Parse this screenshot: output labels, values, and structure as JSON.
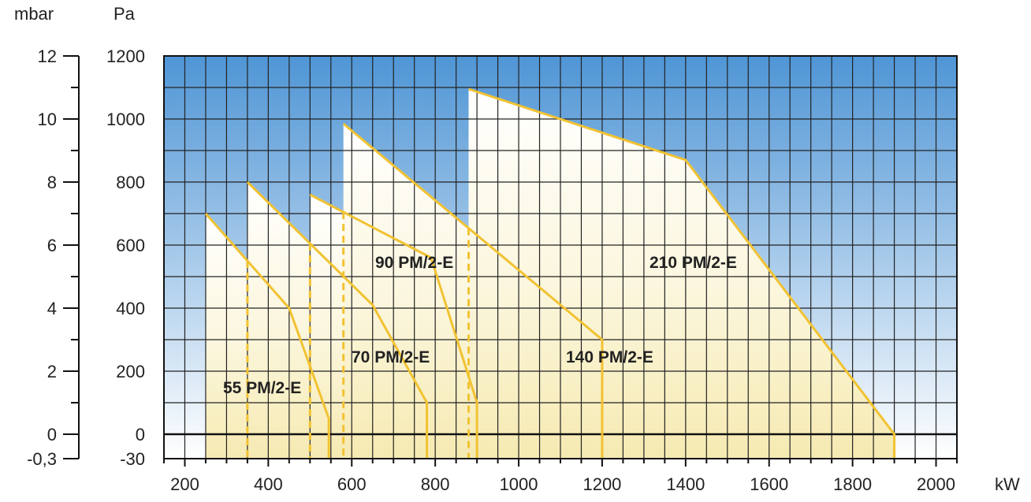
{
  "chart_data": {
    "type": "area",
    "title": "",
    "xlabel": "kW",
    "ylabel_left": "mbar",
    "ylabel_right": "Pa",
    "xlim": [
      150,
      2050
    ],
    "ylim": [
      -30,
      1200
    ],
    "x_ticks": [
      200,
      400,
      600,
      800,
      1000,
      1200,
      1400,
      1600,
      1800,
      2000
    ],
    "x_tick_labels": [
      "200",
      "400",
      "600",
      "800",
      "1000",
      "1200",
      "1400",
      "1600",
      "1800",
      "2000"
    ],
    "pa_ticks": [
      -30,
      0,
      200,
      400,
      600,
      800,
      1000,
      1200
    ],
    "pa_tick_labels": [
      "-30",
      "0",
      "200",
      "400",
      "600",
      "800",
      "1000",
      "1200"
    ],
    "mbar_ticks": [
      -0.3,
      0,
      2,
      4,
      6,
      8,
      10,
      12
    ],
    "mbar_tick_labels": [
      "-0,3",
      "0",
      "2",
      "4",
      "6",
      "8",
      "10",
      "12"
    ],
    "grid": true,
    "colors": {
      "background_top": "#4f95d5",
      "background_bottom": "#ffffff",
      "curve": "#f1c232",
      "fill_top": "#ffffff",
      "fill_bottom": "#f6eab2",
      "grid": "#222222"
    },
    "series": [
      {
        "name": "55 PM/2-E",
        "x": [
          250,
          450,
          545,
          545
        ],
        "y": [
          700,
          400,
          50,
          -30
        ]
      },
      {
        "name": "70 PM/2-E",
        "x": [
          350,
          650,
          780,
          780
        ],
        "y": [
          800,
          410,
          100,
          -30
        ]
      },
      {
        "name": "90 PM/2-E",
        "x": [
          500,
          790,
          900,
          900
        ],
        "y": [
          760,
          560,
          100,
          -30
        ]
      },
      {
        "name": "140 PM/2-E",
        "x": [
          580,
          1200,
          1200
        ],
        "y": [
          985,
          300,
          -30
        ]
      },
      {
        "name": "210 PM/2-E",
        "x": [
          880,
          1400,
          1900,
          1900
        ],
        "y": [
          1095,
          870,
          0,
          -30
        ]
      }
    ],
    "min_output_markers": [
      {
        "series": "55 PM/2-E",
        "x": 350
      },
      {
        "series": "70 PM/2-E",
        "x": 500
      },
      {
        "series": "90 PM/2-E",
        "x": 580
      },
      {
        "series": "140 PM/2-E",
        "x": 880
      }
    ]
  }
}
